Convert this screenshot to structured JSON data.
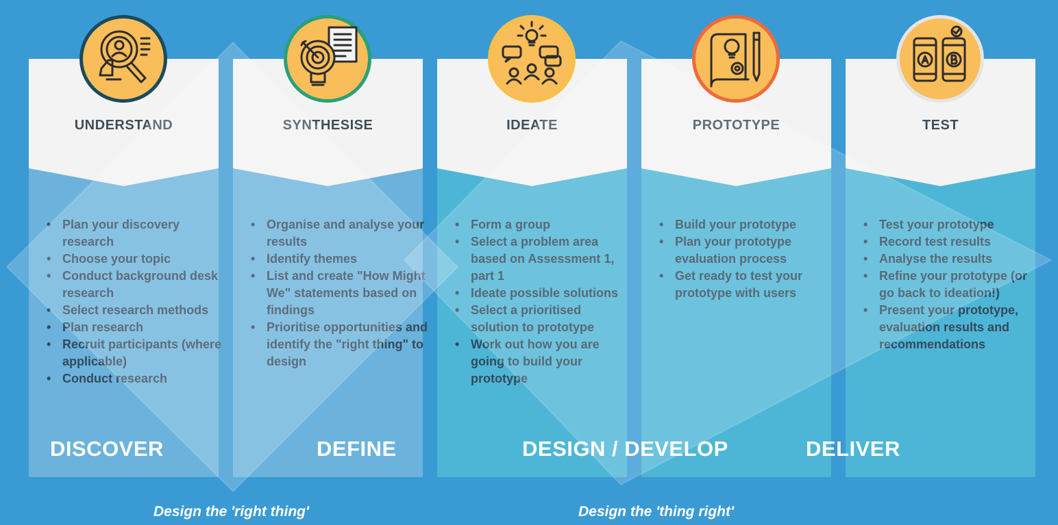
{
  "columns": [
    {
      "title": "UNDERSTAND",
      "icon": "magnifier-user-icon",
      "ring_color": "#1a4a5e",
      "body_color": "#6bb3dc",
      "items": [
        "Plan your discovery research",
        "Choose your topic",
        "Conduct background desk research",
        "Select research methods",
        "Plan research",
        "Recruit participants (where applicable)",
        "Conduct research"
      ]
    },
    {
      "title": "SYNTHESISE",
      "icon": "target-lightbulb-icon",
      "ring_color": "#2aa079",
      "body_color": "#6bb3dc",
      "items": [
        "Organise and analyse your results",
        "Identify themes",
        "List and create \"How Might We\" statements based on findings",
        "Prioritise opportunities and identify the \"right thing\" to design"
      ]
    },
    {
      "title": "IDEATE",
      "icon": "group-ideas-icon",
      "ring_color": "#f7c04a",
      "body_color": "#4db6d6",
      "items": [
        "Form a group",
        "Select a problem area based on Assessment 1, part 1",
        "Ideate possible solutions",
        "Select a prioritised solution to prototype",
        "Work out how you are going to build your prototype"
      ]
    },
    {
      "title": "PROTOTYPE",
      "icon": "blueprint-pencil-icon",
      "ring_color": "#ee6a3b",
      "body_color": "#4db6d6",
      "items": [
        "Build your prototype",
        "Plan your prototype evaluation process",
        "Get ready to test your prototype with users"
      ]
    },
    {
      "title": "TEST",
      "icon": "ab-test-phones-icon",
      "ring_color": "#e4e4e4",
      "body_color": "#4db6d6",
      "items": [
        "Test your prototype",
        "Record test results",
        "Analyse the results",
        "Refine your prototype (or go back to ideation!)",
        "Present your prototype, evaluation results and recommendations"
      ]
    }
  ],
  "phases": {
    "discover": "DISCOVER",
    "define": "DEFINE",
    "design_develop": "DESIGN / DEVELOP",
    "deliver": "DELIVER"
  },
  "taglines": {
    "right_thing": "Design the 'right thing'",
    "thing_right": "Design the 'thing right'"
  },
  "colors": {
    "background": "#3a9ad3",
    "icon_fill": "#f9bd5a",
    "icon_line": "#2c2c2c",
    "text_dark": "#34495a"
  }
}
